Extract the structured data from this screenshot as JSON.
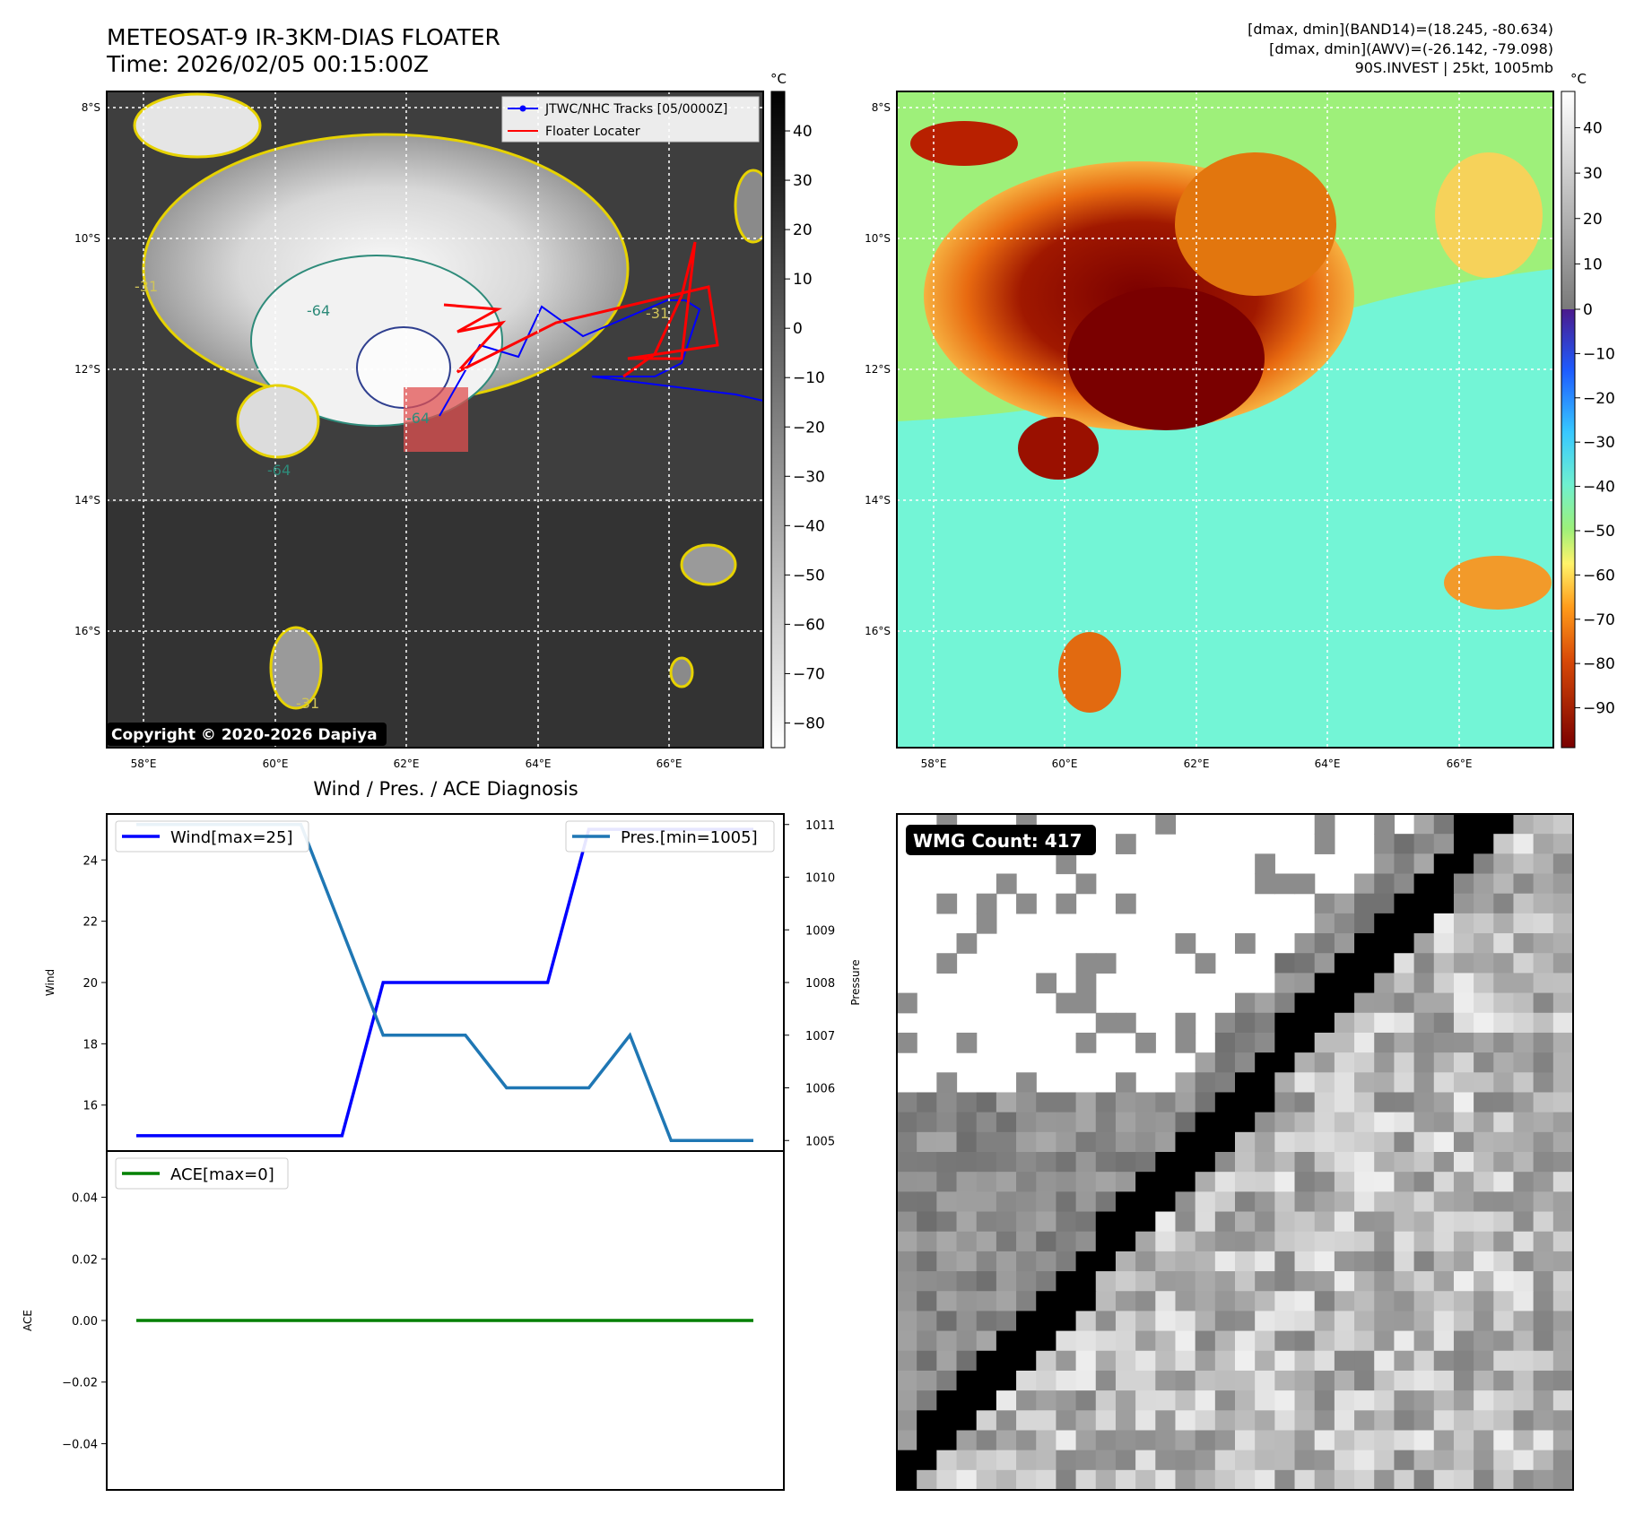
{
  "header": {
    "title_line1": "METEOSAT-9 IR-3KM-DIAS FLOATER",
    "title_line2": "Time: 2026/02/05 00:15:00Z",
    "info_line1": "[dmax, dmin](BAND14)=(18.245, -80.634)",
    "info_line2": "[dmax, dmin](AWV)=(-26.142, -79.098)",
    "info_line3": "90S.INVEST | 25kt, 1005mb"
  },
  "ir_panel": {
    "lat_labels": [
      "8°S",
      "10°S",
      "12°S",
      "14°S",
      "16°S"
    ],
    "lon_labels": [
      "58°E",
      "60°E",
      "62°E",
      "64°E",
      "66°E"
    ],
    "legend": [
      "JTWC/NHC Tracks [05/0000Z]",
      "Floater Locater"
    ],
    "colorbar_unit": "°C",
    "colorbar_ticks": [
      "40",
      "30",
      "20",
      "10",
      "0",
      "−10",
      "−20",
      "−30",
      "−40",
      "−50",
      "−60",
      "−70",
      "−80"
    ],
    "copyright": "Copyright © 2020-2026 Dapiya",
    "contour_labels": [
      "-64",
      "-64",
      "-64",
      "-31",
      "-31",
      "-31"
    ]
  },
  "awv_panel": {
    "lat_labels": [
      "8°S",
      "10°S",
      "12°S",
      "14°S",
      "16°S"
    ],
    "lon_labels": [
      "58°E",
      "60°E",
      "62°E",
      "64°E",
      "66°E"
    ],
    "colorbar_unit": "°C",
    "colorbar_ticks": [
      "40",
      "30",
      "20",
      "10",
      "0",
      "−10",
      "−20",
      "−30",
      "−40",
      "−50",
      "−60",
      "−70",
      "−80",
      "−90"
    ]
  },
  "wmg_panel": {
    "badge": "WMG Count: 417"
  },
  "chart_data": [
    {
      "type": "line",
      "title": "Wind / Pres. / ACE Diagnosis",
      "ylabel": "Wind",
      "ylabel_right": "Pressure",
      "ylim": [
        14.5,
        25.5
      ],
      "ylim_right": [
        1004.8,
        1011.2
      ],
      "y_ticks": [
        "16",
        "18",
        "20",
        "22",
        "24"
      ],
      "y_ticks_right": [
        "1005",
        "1006",
        "1007",
        "1008",
        "1009",
        "1010",
        "1011"
      ],
      "x": [
        0,
        1,
        2,
        3,
        4,
        5,
        6,
        7,
        8,
        9,
        10,
        11,
        12,
        13,
        14,
        15
      ],
      "series": [
        {
          "name": "Wind[max=25]",
          "color": "#0000ff",
          "axis": "left",
          "values": [
            15,
            15,
            15,
            15,
            15,
            15,
            20,
            20,
            20,
            20,
            20,
            25,
            25,
            25,
            25,
            25
          ]
        },
        {
          "name": "Pres.[min=1005]",
          "color": "#1f77b4",
          "axis": "right",
          "values": [
            1011,
            1011,
            1011,
            1011,
            1011,
            1009,
            1007,
            1007,
            1007,
            1006,
            1006,
            1006,
            1007,
            1005,
            1005,
            1005
          ]
        }
      ]
    },
    {
      "type": "line",
      "ylabel": "ACE",
      "ylim": [
        -0.055,
        0.055
      ],
      "y_ticks": [
        "0.04",
        "0.02",
        "0.00",
        "−0.02",
        "−0.04"
      ],
      "x": [
        0,
        15
      ],
      "series": [
        {
          "name": "ACE[max=0]",
          "color": "#008000",
          "values": [
            0,
            0
          ]
        }
      ]
    }
  ]
}
